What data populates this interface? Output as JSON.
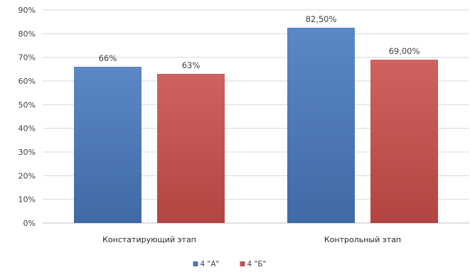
{
  "chart_data": {
    "type": "bar",
    "title": "",
    "xlabel": "",
    "ylabel": "",
    "ylim": [
      0,
      90
    ],
    "ytick_step": 10,
    "ytick_suffix": "%",
    "grid": true,
    "legend_position": "bottom",
    "categories": [
      "Констатирующий этап",
      "Контрольный этап"
    ],
    "series": [
      {
        "name": "4 \"А\"",
        "color": "#4a78b5",
        "values": [
          66,
          82.5
        ],
        "labels": [
          "66%",
          "82,50%"
        ]
      },
      {
        "name": "4 \"Б\"",
        "color": "#c0504d",
        "values": [
          63,
          69
        ],
        "labels": [
          "63%",
          "69,00%"
        ]
      }
    ]
  }
}
